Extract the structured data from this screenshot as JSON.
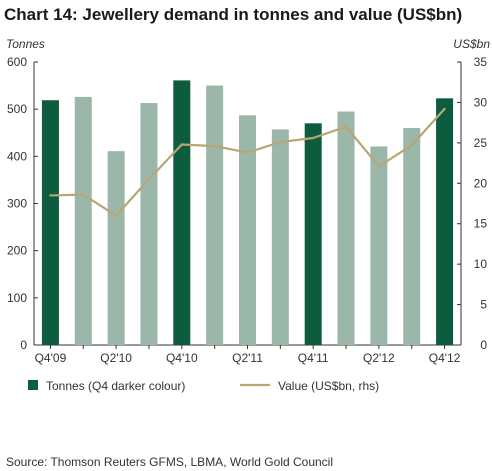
{
  "chart_data": {
    "type": "bar",
    "title": "Chart 14: Jewellery demand in tonnes and value (US$bn)",
    "y_left_label": "Tonnes",
    "y_right_label": "US$bn",
    "y_left_lim": [
      0,
      600
    ],
    "y_left_ticks": [
      "0",
      "100",
      "200",
      "300",
      "400",
      "500",
      "600"
    ],
    "y_right_lim": [
      0,
      35
    ],
    "y_right_ticks": [
      "0",
      "5",
      "10",
      "15",
      "20",
      "25",
      "30",
      "35"
    ],
    "categories": [
      "Q4'09",
      "Q1'10",
      "Q2'10",
      "Q3'10",
      "Q4'10",
      "Q1'11",
      "Q2'11",
      "Q3'11",
      "Q4'11",
      "Q1'12",
      "Q2'12",
      "Q3'12",
      "Q4'12"
    ],
    "x_tick_labels": [
      "Q4'09",
      "",
      "Q2'10",
      "",
      "Q4'10",
      "",
      "Q2'11",
      "",
      "Q4'11",
      "",
      "Q2'12",
      "",
      "Q4'12"
    ],
    "series": [
      {
        "name": "Tonnes (Q4 darker colour)",
        "type": "bar",
        "axis": "left",
        "values": [
          519,
          526,
          411,
          513,
          561,
          550,
          487,
          457,
          470,
          495,
          421,
          460,
          523
        ]
      },
      {
        "name": "Value (US$bn, rhs)",
        "type": "line",
        "axis": "right",
        "values": [
          18.5,
          18.6,
          16.0,
          20.5,
          24.8,
          24.6,
          23.8,
          25.1,
          25.6,
          27.0,
          22.1,
          24.7,
          29.2
        ]
      }
    ],
    "highlight_categories": [
      "Q4'09",
      "Q4'10",
      "Q4'11",
      "Q4'12"
    ],
    "grid": false,
    "legend_position": "bottom",
    "source": "Source: Thomson Reuters GFMS, LBMA, World Gold Council"
  },
  "colors": {
    "bar_dark": "#0d5c3e",
    "bar_light": "#9bb7a9",
    "line": "#b8a674",
    "axis": "#333333"
  }
}
